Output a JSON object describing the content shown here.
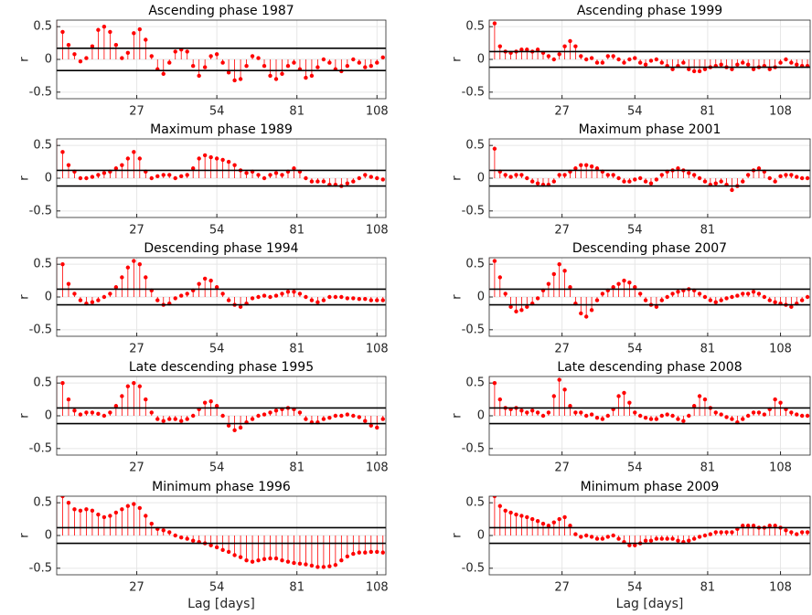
{
  "chart_data": [
    {
      "type": "stem",
      "title": "Ascending phase 1987",
      "ylabel": "r",
      "color": "#ff0000",
      "grid": true,
      "x": [
        0,
        2,
        4,
        6,
        8,
        10,
        12,
        14,
        16,
        18,
        20,
        22,
        24,
        26,
        28,
        30,
        32,
        34,
        36,
        38,
        40,
        42,
        44,
        46,
        48,
        50,
        52,
        54,
        56,
        58,
        60,
        62,
        64,
        66,
        68,
        70,
        72,
        74,
        76,
        78,
        80,
        82,
        84,
        86,
        88,
        90,
        92,
        94,
        96,
        98,
        100,
        102,
        104,
        106,
        108,
        110
      ],
      "values": [
        1,
        0.42,
        0.22,
        0.08,
        -0.03,
        0.02,
        0.2,
        0.45,
        0.5,
        0.42,
        0.22,
        0.02,
        0.1,
        0.4,
        0.46,
        0.3,
        0.05,
        -0.15,
        -0.22,
        -0.05,
        0.12,
        0.15,
        0.12,
        -0.1,
        -0.25,
        -0.12,
        0.05,
        0.08,
        -0.05,
        -0.2,
        -0.32,
        -0.3,
        -0.1,
        0.05,
        0.02,
        -0.1,
        -0.25,
        -0.3,
        -0.22,
        -0.1,
        -0.05,
        -0.15,
        -0.28,
        -0.25,
        -0.12,
        0,
        -0.05,
        -0.15,
        -0.18,
        -0.1,
        0,
        -0.05,
        -0.12,
        -0.1,
        -0.05,
        0.03
      ],
      "hlines": [
        0.17,
        -0.17
      ],
      "xlim": [
        0,
        111
      ],
      "ylim": [
        -0.6,
        0.6
      ],
      "xticks": [
        27,
        54,
        81,
        108
      ],
      "yticks": [
        -0.5,
        0,
        0.5
      ]
    },
    {
      "type": "stem",
      "title": "Ascending phase 1999",
      "ylabel": "r",
      "color": "#ff0000",
      "grid": true,
      "x": [
        0,
        2,
        4,
        6,
        8,
        10,
        12,
        14,
        16,
        18,
        20,
        22,
        24,
        26,
        28,
        30,
        32,
        34,
        36,
        38,
        40,
        42,
        44,
        46,
        48,
        50,
        52,
        54,
        56,
        58,
        60,
        62,
        64,
        66,
        68,
        70,
        72,
        74,
        76,
        78,
        80,
        82,
        84,
        86,
        88,
        90,
        92,
        94,
        96,
        98,
        100,
        102,
        104,
        106,
        108,
        110,
        112,
        114,
        116,
        118
      ],
      "values": [
        1,
        0.55,
        0.2,
        0.12,
        0.1,
        0.12,
        0.15,
        0.15,
        0.12,
        0.15,
        0.1,
        0.05,
        0,
        0.08,
        0.2,
        0.28,
        0.2,
        0.05,
        0,
        0.02,
        -0.05,
        -0.05,
        0.05,
        0.05,
        0,
        -0.05,
        0,
        0.02,
        -0.05,
        -0.08,
        -0.02,
        0,
        -0.05,
        -0.1,
        -0.15,
        -0.1,
        -0.05,
        -0.15,
        -0.18,
        -0.18,
        -0.15,
        -0.12,
        -0.1,
        -0.08,
        -0.12,
        -0.15,
        -0.08,
        -0.05,
        -0.08,
        -0.15,
        -0.12,
        -0.1,
        -0.15,
        -0.12,
        -0.05,
        0,
        -0.05,
        -0.08,
        -0.1,
        -0.1
      ],
      "hlines": [
        0.12,
        -0.12
      ],
      "xlim": [
        0,
        119
      ],
      "ylim": [
        -0.6,
        0.6
      ],
      "xticks": [
        27,
        54,
        81,
        108
      ],
      "yticks": [
        -0.5,
        0,
        0.5
      ]
    },
    {
      "type": "stem",
      "title": "Maximum phase 1989",
      "ylabel": "r",
      "color": "#ff0000",
      "grid": true,
      "x": [
        0,
        2,
        4,
        6,
        8,
        10,
        12,
        14,
        16,
        18,
        20,
        22,
        24,
        26,
        28,
        30,
        32,
        34,
        36,
        38,
        40,
        42,
        44,
        46,
        48,
        50,
        52,
        54,
        56,
        58,
        60,
        62,
        64,
        66,
        68,
        70,
        72,
        74,
        76,
        78,
        80,
        82,
        84,
        86,
        88,
        90,
        92,
        94,
        96,
        98,
        100,
        102,
        104,
        106,
        108,
        110
      ],
      "values": [
        1,
        0.4,
        0.2,
        0.1,
        0,
        0,
        0.02,
        0.05,
        0.08,
        0.1,
        0.15,
        0.2,
        0.3,
        0.4,
        0.3,
        0.1,
        0,
        0.03,
        0.05,
        0.05,
        0,
        0.03,
        0.05,
        0.15,
        0.3,
        0.35,
        0.32,
        0.3,
        0.28,
        0.25,
        0.2,
        0.12,
        0.08,
        0.1,
        0.05,
        0,
        0.05,
        0.08,
        0.05,
        0.1,
        0.15,
        0.1,
        0,
        -0.05,
        -0.05,
        -0.05,
        -0.1,
        -0.1,
        -0.12,
        -0.08,
        -0.05,
        0,
        0.05,
        0.02,
        0,
        -0.02
      ],
      "hlines": [
        0.12,
        -0.12
      ],
      "xlim": [
        0,
        111
      ],
      "ylim": [
        -0.6,
        0.6
      ],
      "xticks": [
        27,
        54,
        81,
        108
      ],
      "yticks": [
        -0.5,
        0,
        0.5
      ]
    },
    {
      "type": "stem",
      "title": "Maximum phase 2001",
      "ylabel": "r",
      "color": "#ff0000",
      "grid": true,
      "x": [
        0,
        2,
        4,
        6,
        8,
        10,
        12,
        14,
        16,
        18,
        20,
        22,
        24,
        26,
        28,
        30,
        32,
        34,
        36,
        38,
        40,
        42,
        44,
        46,
        48,
        50,
        52,
        54,
        56,
        58,
        60,
        62,
        64,
        66,
        68,
        70,
        72,
        74,
        76,
        78,
        80,
        82,
        84,
        86,
        88,
        90,
        92,
        94,
        96,
        98,
        100,
        102,
        104,
        106,
        108,
        110,
        112,
        114,
        116,
        118
      ],
      "values": [
        1,
        0.45,
        0.1,
        0.05,
        0.02,
        0.05,
        0.05,
        0,
        -0.05,
        -0.08,
        -0.1,
        -0.1,
        -0.05,
        0.05,
        0.05,
        0.1,
        0.15,
        0.2,
        0.2,
        0.18,
        0.15,
        0.1,
        0.05,
        0.05,
        0,
        -0.05,
        -0.05,
        -0.02,
        0,
        -0.05,
        -0.08,
        -0.02,
        0.05,
        0.1,
        0.12,
        0.15,
        0.12,
        0.08,
        0.05,
        0,
        -0.05,
        -0.1,
        -0.08,
        -0.05,
        -0.1,
        -0.18,
        -0.12,
        -0.05,
        0.05,
        0.12,
        0.15,
        0.1,
        0,
        -0.05,
        0.03,
        0.05,
        0.05,
        0.02,
        0,
        0
      ],
      "hlines": [
        0.12,
        -0.12
      ],
      "xlim": [
        0,
        119
      ],
      "ylim": [
        -0.6,
        0.6
      ],
      "xticks": [
        27,
        54,
        81
      ],
      "yticks": [
        -0.5,
        0,
        0.5
      ]
    },
    {
      "type": "stem",
      "title": "Descending phase 1994",
      "ylabel": "r",
      "color": "#ff0000",
      "grid": true,
      "x": [
        0,
        2,
        4,
        6,
        8,
        10,
        12,
        14,
        16,
        18,
        20,
        22,
        24,
        26,
        28,
        30,
        32,
        34,
        36,
        38,
        40,
        42,
        44,
        46,
        48,
        50,
        52,
        54,
        56,
        58,
        60,
        62,
        64,
        66,
        68,
        70,
        72,
        74,
        76,
        78,
        80,
        82,
        84,
        86,
        88,
        90,
        92,
        94,
        96,
        98,
        100,
        102,
        104,
        106,
        108,
        110
      ],
      "values": [
        1,
        0.5,
        0.2,
        0.05,
        -0.05,
        -0.1,
        -0.08,
        -0.05,
        0,
        0.05,
        0.15,
        0.3,
        0.45,
        0.55,
        0.5,
        0.3,
        0.1,
        -0.05,
        -0.12,
        -0.1,
        -0.02,
        0.02,
        0.05,
        0.1,
        0.2,
        0.28,
        0.25,
        0.15,
        0.05,
        -0.05,
        -0.12,
        -0.15,
        -0.1,
        -0.02,
        0,
        0.02,
        0,
        0.02,
        0.05,
        0.08,
        0.08,
        0.05,
        0,
        -0.05,
        -0.08,
        -0.05,
        0,
        0,
        0,
        -0.02,
        -0.02,
        -0.03,
        -0.03,
        -0.05,
        -0.05,
        -0.05
      ],
      "hlines": [
        0.12,
        -0.12
      ],
      "xlim": [
        0,
        111
      ],
      "ylim": [
        -0.6,
        0.6
      ],
      "xticks": [
        27,
        54,
        81,
        108
      ],
      "yticks": [
        -0.5,
        0,
        0.5
      ]
    },
    {
      "type": "stem",
      "title": "Descending phase 2007",
      "ylabel": "r",
      "color": "#ff0000",
      "grid": true,
      "x": [
        0,
        2,
        4,
        6,
        8,
        10,
        12,
        14,
        16,
        18,
        20,
        22,
        24,
        26,
        28,
        30,
        32,
        34,
        36,
        38,
        40,
        42,
        44,
        46,
        48,
        50,
        52,
        54,
        56,
        58,
        60,
        62,
        64,
        66,
        68,
        70,
        72,
        74,
        76,
        78,
        80,
        82,
        84,
        86,
        88,
        90,
        92,
        94,
        96,
        98,
        100,
        102,
        104,
        106,
        108,
        110,
        112,
        114,
        116,
        118
      ],
      "values": [
        1,
        0.55,
        0.3,
        0.05,
        -0.15,
        -0.22,
        -0.2,
        -0.15,
        -0.1,
        -0.02,
        0.1,
        0.2,
        0.35,
        0.5,
        0.4,
        0.15,
        -0.1,
        -0.25,
        -0.3,
        -0.2,
        -0.05,
        0.05,
        0.1,
        0.15,
        0.2,
        0.25,
        0.22,
        0.15,
        0.05,
        -0.05,
        -0.12,
        -0.15,
        -0.05,
        0,
        0.05,
        0.08,
        0.1,
        0.12,
        0.1,
        0.05,
        0,
        -0.05,
        -0.08,
        -0.05,
        -0.02,
        0,
        0.02,
        0.05,
        0.05,
        0.08,
        0.05,
        0,
        -0.05,
        -0.08,
        -0.1,
        -0.12,
        -0.15,
        -0.1,
        -0.05,
        0
      ],
      "hlines": [
        0.12,
        -0.12
      ],
      "xlim": [
        0,
        119
      ],
      "ylim": [
        -0.6,
        0.6
      ],
      "xticks": [
        27,
        54,
        81,
        108
      ],
      "yticks": [
        -0.5,
        0,
        0.5
      ]
    },
    {
      "type": "stem",
      "title": "Late descending phase 1995",
      "ylabel": "r",
      "color": "#ff0000",
      "grid": true,
      "x": [
        0,
        2,
        4,
        6,
        8,
        10,
        12,
        14,
        16,
        18,
        20,
        22,
        24,
        26,
        28,
        30,
        32,
        34,
        36,
        38,
        40,
        42,
        44,
        46,
        48,
        50,
        52,
        54,
        56,
        58,
        60,
        62,
        64,
        66,
        68,
        70,
        72,
        74,
        76,
        78,
        80,
        82,
        84,
        86,
        88,
        90,
        92,
        94,
        96,
        98,
        100,
        102,
        104,
        106,
        108,
        110
      ],
      "values": [
        1,
        0.5,
        0.25,
        0.08,
        0.02,
        0.05,
        0.05,
        0.03,
        0,
        0.05,
        0.15,
        0.3,
        0.45,
        0.5,
        0.45,
        0.25,
        0.05,
        -0.05,
        -0.08,
        -0.05,
        -0.05,
        -0.08,
        -0.05,
        0,
        0.1,
        0.2,
        0.22,
        0.15,
        0,
        -0.15,
        -0.22,
        -0.18,
        -0.1,
        -0.05,
        0,
        0.02,
        0.05,
        0.08,
        0.1,
        0.12,
        0.1,
        0.05,
        -0.05,
        -0.1,
        -0.1,
        -0.05,
        -0.03,
        0,
        0,
        0.02,
        0,
        -0.02,
        -0.08,
        -0.15,
        -0.18,
        -0.05
      ],
      "hlines": [
        0.12,
        -0.12
      ],
      "xlim": [
        0,
        111
      ],
      "ylim": [
        -0.6,
        0.6
      ],
      "xticks": [
        27,
        54,
        81,
        108
      ],
      "yticks": [
        -0.5,
        0,
        0.5
      ]
    },
    {
      "type": "stem",
      "title": "Late descending phase 2008",
      "ylabel": "r",
      "color": "#ff0000",
      "grid": true,
      "x": [
        0,
        2,
        4,
        6,
        8,
        10,
        12,
        14,
        16,
        18,
        20,
        22,
        24,
        26,
        28,
        30,
        32,
        34,
        36,
        38,
        40,
        42,
        44,
        46,
        48,
        50,
        52,
        54,
        56,
        58,
        60,
        62,
        64,
        66,
        68,
        70,
        72,
        74,
        76,
        78,
        80,
        82,
        84,
        86,
        88,
        90,
        92,
        94,
        96,
        98,
        100,
        102,
        104,
        106,
        108,
        110,
        112,
        114,
        116,
        118
      ],
      "values": [
        1,
        0.5,
        0.25,
        0.12,
        0.1,
        0.12,
        0.08,
        0.05,
        0.08,
        0.05,
        0,
        0.05,
        0.3,
        0.55,
        0.4,
        0.15,
        0.05,
        0.05,
        0,
        0.02,
        -0.03,
        -0.05,
        0,
        0.1,
        0.3,
        0.35,
        0.2,
        0.05,
        0,
        -0.03,
        -0.05,
        -0.05,
        0,
        0.02,
        0,
        -0.05,
        -0.08,
        0,
        0.15,
        0.3,
        0.25,
        0.12,
        0.05,
        0.02,
        -0.02,
        -0.05,
        -0.1,
        -0.05,
        0,
        0.05,
        0.05,
        0.02,
        0.1,
        0.25,
        0.2,
        0.1,
        0.05,
        0.02,
        0,
        0
      ],
      "hlines": [
        0.12,
        -0.12
      ],
      "xlim": [
        0,
        119
      ],
      "ylim": [
        -0.6,
        0.6
      ],
      "xticks": [
        27,
        54,
        81,
        108
      ],
      "yticks": [
        -0.5,
        0,
        0.5
      ]
    },
    {
      "type": "stem",
      "title": "Minimum phase 1996",
      "ylabel": "r",
      "xlabel": "Lag [days]",
      "color": "#ff0000",
      "grid": true,
      "x": [
        0,
        2,
        4,
        6,
        8,
        10,
        12,
        14,
        16,
        18,
        20,
        22,
        24,
        26,
        28,
        30,
        32,
        34,
        36,
        38,
        40,
        42,
        44,
        46,
        48,
        50,
        52,
        54,
        56,
        58,
        60,
        62,
        64,
        66,
        68,
        70,
        72,
        74,
        76,
        78,
        80,
        82,
        84,
        86,
        88,
        90,
        92,
        94,
        96,
        98,
        100,
        102,
        104,
        106,
        108,
        110
      ],
      "values": [
        1,
        0.6,
        0.5,
        0.4,
        0.38,
        0.4,
        0.38,
        0.32,
        0.28,
        0.3,
        0.35,
        0.4,
        0.45,
        0.48,
        0.42,
        0.3,
        0.18,
        0.1,
        0.08,
        0.05,
        0,
        -0.03,
        -0.05,
        -0.08,
        -0.1,
        -0.12,
        -0.15,
        -0.18,
        -0.22,
        -0.25,
        -0.3,
        -0.33,
        -0.38,
        -0.4,
        -0.38,
        -0.36,
        -0.35,
        -0.35,
        -0.38,
        -0.4,
        -0.42,
        -0.43,
        -0.44,
        -0.46,
        -0.48,
        -0.48,
        -0.47,
        -0.45,
        -0.38,
        -0.32,
        -0.28,
        -0.26,
        -0.26,
        -0.25,
        -0.25,
        -0.26
      ],
      "hlines": [
        0.12,
        -0.12
      ],
      "xlim": [
        0,
        111
      ],
      "ylim": [
        -0.6,
        0.6
      ],
      "xticks": [
        27,
        54,
        81,
        108
      ],
      "yticks": [
        -0.5,
        0,
        0.5
      ]
    },
    {
      "type": "stem",
      "title": "Minimum phase 2009",
      "ylabel": "r",
      "xlabel": "Lag [days]",
      "color": "#ff0000",
      "grid": true,
      "x": [
        0,
        2,
        4,
        6,
        8,
        10,
        12,
        14,
        16,
        18,
        20,
        22,
        24,
        26,
        28,
        30,
        32,
        34,
        36,
        38,
        40,
        42,
        44,
        46,
        48,
        50,
        52,
        54,
        56,
        58,
        60,
        62,
        64,
        66,
        68,
        70,
        72,
        74,
        76,
        78,
        80,
        82,
        84,
        86,
        88,
        90,
        92,
        94,
        96,
        98,
        100,
        102,
        104,
        106,
        108,
        110,
        112,
        114,
        116,
        118
      ],
      "values": [
        1,
        0.6,
        0.45,
        0.38,
        0.35,
        0.32,
        0.3,
        0.28,
        0.25,
        0.22,
        0.18,
        0.15,
        0.2,
        0.25,
        0.28,
        0.15,
        0.02,
        -0.02,
        0,
        -0.02,
        -0.05,
        -0.05,
        -0.02,
        0,
        -0.05,
        -0.1,
        -0.15,
        -0.15,
        -0.12,
        -0.08,
        -0.08,
        -0.05,
        -0.05,
        -0.05,
        -0.05,
        -0.08,
        -0.1,
        -0.08,
        -0.05,
        -0.02,
        0,
        0.02,
        0.05,
        0.05,
        0.05,
        0.05,
        0.1,
        0.15,
        0.15,
        0.15,
        0.12,
        0.12,
        0.15,
        0.15,
        0.12,
        0.08,
        0.05,
        0.02,
        0.05,
        0.05
      ],
      "hlines": [
        0.12,
        -0.12
      ],
      "xlim": [
        0,
        119
      ],
      "ylim": [
        -0.6,
        0.6
      ],
      "xticks": [
        27,
        54,
        81,
        108
      ],
      "yticks": [
        -0.5,
        0,
        0.5
      ]
    }
  ]
}
